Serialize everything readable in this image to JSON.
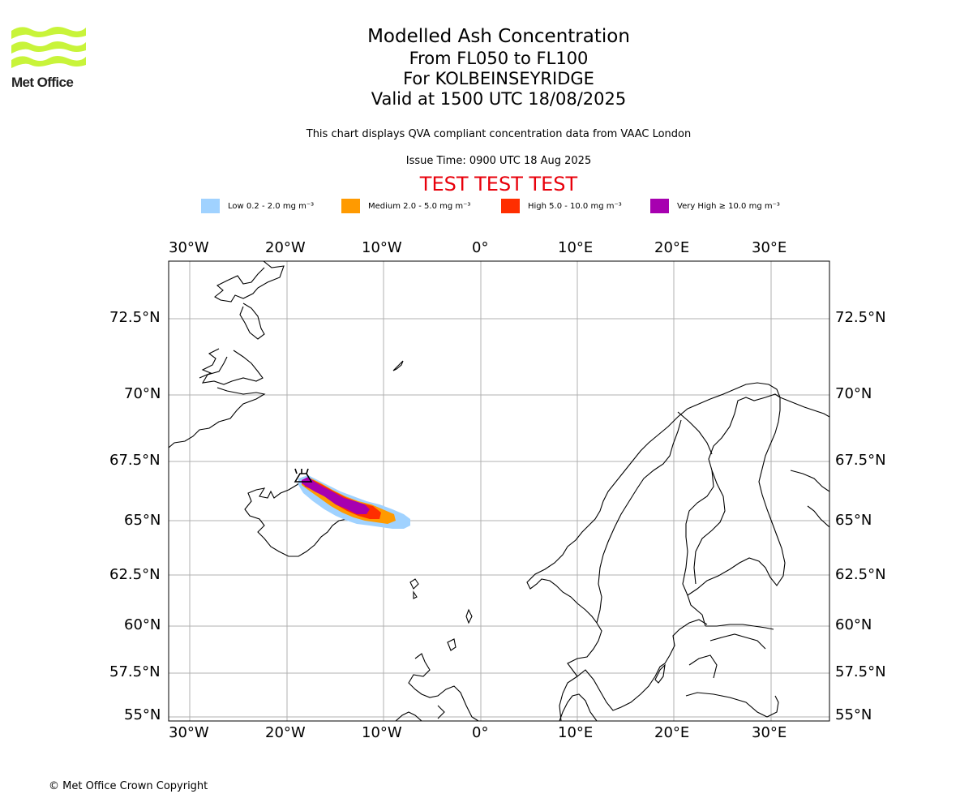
{
  "header": {
    "logo_text": "Met Office",
    "title_line1": "Modelled Ash Concentration",
    "title_line2": "From FL050 to FL100",
    "title_line3": "For KOLBEINSEYRIDGE",
    "title_line4": "Valid at 1500 UTC 18/08/2025",
    "description": "This chart displays QVA compliant concentration data from VAAC London",
    "issue_time": "Issue Time: 0900 UTC 18 Aug 2025",
    "test_banner": "TEST TEST TEST"
  },
  "legend": {
    "items": [
      {
        "label": "Low 0.2 - 2.0 mg m⁻³",
        "color": "#a0d2ff"
      },
      {
        "label": "Medium 2.0 - 5.0 mg m⁻³",
        "color": "#ff9a00"
      },
      {
        "label": "High 5.0 - 10.0 mg m⁻³",
        "color": "#ff2e00"
      },
      {
        "label": "Very High ≥ 10.0 mg m⁻³",
        "color": "#a700b0"
      }
    ]
  },
  "map": {
    "lon_ticks": [
      "30°W",
      "20°W",
      "10°W",
      "0°",
      "10°E",
      "20°E",
      "30°E"
    ],
    "lat_ticks": [
      "72.5°N",
      "70°N",
      "67.5°N",
      "65°N",
      "62.5°N",
      "60°N",
      "57.5°N",
      "55°N"
    ],
    "volcano_icon": "volcano-triangle-icon",
    "colors": {
      "grid": "#b0b0b0",
      "coast": "#000000",
      "frame": "#000000"
    }
  },
  "footer": {
    "copyright": "© Met Office Crown Copyright"
  }
}
